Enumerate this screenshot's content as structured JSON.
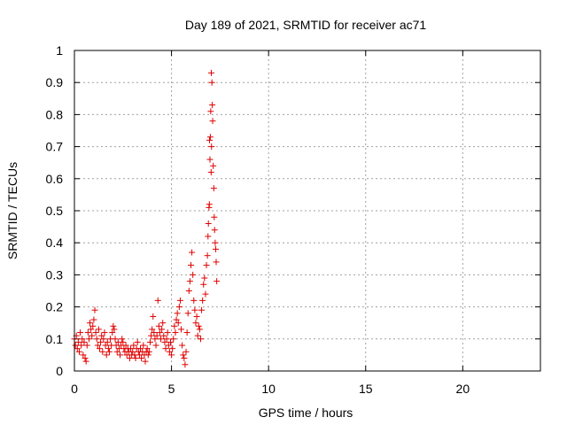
{
  "chart_data": {
    "type": "scatter",
    "title": "Day 189 of 2021, SRMTID for receiver ac71",
    "xlabel": "GPS time / hours",
    "ylabel": "SRMTID / TECUs",
    "xlim": [
      0,
      24
    ],
    "ylim": [
      0,
      1
    ],
    "xticks": [
      0,
      5,
      10,
      15,
      20
    ],
    "xtick_labels": [
      "0",
      "5",
      "10",
      "15",
      "20"
    ],
    "yticks": [
      0,
      0.1,
      0.2,
      0.3,
      0.4,
      0.5,
      0.6,
      0.7,
      0.8,
      0.9,
      1
    ],
    "ytick_labels": [
      "0",
      "0.1",
      "0.2",
      "0.3",
      "0.4",
      "0.5",
      "0.6",
      "0.7",
      "0.8",
      "0.9",
      "1"
    ],
    "grid": true,
    "marker": "+",
    "color": "#e00000",
    "series": [
      {
        "name": "SRMTID",
        "points": [
          [
            0.0,
            0.1
          ],
          [
            0.05,
            0.08
          ],
          [
            0.1,
            0.11
          ],
          [
            0.15,
            0.07
          ],
          [
            0.2,
            0.09
          ],
          [
            0.25,
            0.06
          ],
          [
            0.3,
            0.12
          ],
          [
            0.35,
            0.08
          ],
          [
            0.4,
            0.1
          ],
          [
            0.45,
            0.05
          ],
          [
            0.5,
            0.09
          ],
          [
            0.55,
            0.04
          ],
          [
            0.6,
            0.03
          ],
          [
            0.65,
            0.08
          ],
          [
            0.7,
            0.12
          ],
          [
            0.75,
            0.1
          ],
          [
            0.8,
            0.15
          ],
          [
            0.85,
            0.13
          ],
          [
            0.9,
            0.11
          ],
          [
            0.95,
            0.14
          ],
          [
            1.0,
            0.16
          ],
          [
            1.05,
            0.19
          ],
          [
            1.1,
            0.12
          ],
          [
            1.15,
            0.1
          ],
          [
            1.2,
            0.08
          ],
          [
            1.25,
            0.13
          ],
          [
            1.3,
            0.07
          ],
          [
            1.35,
            0.09
          ],
          [
            1.4,
            0.11
          ],
          [
            1.45,
            0.06
          ],
          [
            1.5,
            0.1
          ],
          [
            1.55,
            0.12
          ],
          [
            1.6,
            0.08
          ],
          [
            1.65,
            0.05
          ],
          [
            1.7,
            0.09
          ],
          [
            1.75,
            0.07
          ],
          [
            1.8,
            0.06
          ],
          [
            1.85,
            0.1
          ],
          [
            1.9,
            0.08
          ],
          [
            1.95,
            0.12
          ],
          [
            2.0,
            0.14
          ],
          [
            2.05,
            0.13
          ],
          [
            2.1,
            0.1
          ],
          [
            2.15,
            0.08
          ],
          [
            2.2,
            0.06
          ],
          [
            2.25,
            0.09
          ],
          [
            2.3,
            0.07
          ],
          [
            2.35,
            0.05
          ],
          [
            2.4,
            0.08
          ],
          [
            2.45,
            0.1
          ],
          [
            2.5,
            0.09
          ],
          [
            2.55,
            0.07
          ],
          [
            2.6,
            0.06
          ],
          [
            2.65,
            0.08
          ],
          [
            2.7,
            0.05
          ],
          [
            2.75,
            0.07
          ],
          [
            2.8,
            0.06
          ],
          [
            2.85,
            0.04
          ],
          [
            2.9,
            0.07
          ],
          [
            2.95,
            0.05
          ],
          [
            3.0,
            0.06
          ],
          [
            3.05,
            0.08
          ],
          [
            3.1,
            0.05
          ],
          [
            3.15,
            0.04
          ],
          [
            3.2,
            0.07
          ],
          [
            3.25,
            0.09
          ],
          [
            3.3,
            0.06
          ],
          [
            3.35,
            0.05
          ],
          [
            3.4,
            0.07
          ],
          [
            3.45,
            0.04
          ],
          [
            3.5,
            0.06
          ],
          [
            3.55,
            0.08
          ],
          [
            3.6,
            0.05
          ],
          [
            3.65,
            0.03
          ],
          [
            3.7,
            0.06
          ],
          [
            3.75,
            0.07
          ],
          [
            3.8,
            0.05
          ],
          [
            3.85,
            0.06
          ],
          [
            3.9,
            0.09
          ],
          [
            3.95,
            0.11
          ],
          [
            4.0,
            0.13
          ],
          [
            4.05,
            0.17
          ],
          [
            4.1,
            0.12
          ],
          [
            4.15,
            0.1
          ],
          [
            4.2,
            0.08
          ],
          [
            4.25,
            0.11
          ],
          [
            4.3,
            0.22
          ],
          [
            4.35,
            0.14
          ],
          [
            4.4,
            0.12
          ],
          [
            4.45,
            0.1
          ],
          [
            4.5,
            0.13
          ],
          [
            4.55,
            0.15
          ],
          [
            4.6,
            0.11
          ],
          [
            4.65,
            0.09
          ],
          [
            4.7,
            0.07
          ],
          [
            4.75,
            0.1
          ],
          [
            4.8,
            0.12
          ],
          [
            4.85,
            0.08
          ],
          [
            4.9,
            0.06
          ],
          [
            4.95,
            0.09
          ],
          [
            5.0,
            0.05
          ],
          [
            5.05,
            0.07
          ],
          [
            5.1,
            0.1
          ],
          [
            5.15,
            0.14
          ],
          [
            5.2,
            0.12
          ],
          [
            5.25,
            0.16
          ],
          [
            5.3,
            0.18
          ],
          [
            5.35,
            0.15
          ],
          [
            5.4,
            0.2
          ],
          [
            5.45,
            0.22
          ],
          [
            5.5,
            0.13
          ],
          [
            5.55,
            0.08
          ],
          [
            5.6,
            0.05
          ],
          [
            5.65,
            0.04
          ],
          [
            5.7,
            0.02
          ],
          [
            5.75,
            0.06
          ],
          [
            5.8,
            0.12
          ],
          [
            5.85,
            0.18
          ],
          [
            5.9,
            0.25
          ],
          [
            5.95,
            0.28
          ],
          [
            6.0,
            0.33
          ],
          [
            6.05,
            0.37
          ],
          [
            6.1,
            0.3
          ],
          [
            6.15,
            0.22
          ],
          [
            6.2,
            0.19
          ],
          [
            6.25,
            0.15
          ],
          [
            6.3,
            0.17
          ],
          [
            6.35,
            0.11
          ],
          [
            6.4,
            0.14
          ],
          [
            6.45,
            0.13
          ],
          [
            6.5,
            0.1
          ],
          [
            6.55,
            0.19
          ],
          [
            6.6,
            0.22
          ],
          [
            6.65,
            0.27
          ],
          [
            6.7,
            0.29
          ],
          [
            6.75,
            0.24
          ],
          [
            6.8,
            0.33
          ],
          [
            6.85,
            0.36
          ],
          [
            6.9,
            0.46
          ],
          [
            6.95,
            0.52
          ],
          [
            7.0,
            0.73
          ],
          [
            7.02,
            0.81
          ],
          [
            7.05,
            0.93
          ],
          [
            7.08,
            0.9
          ],
          [
            7.1,
            0.83
          ],
          [
            7.12,
            0.78
          ],
          [
            7.15,
            0.64
          ],
          [
            7.18,
            0.57
          ],
          [
            7.2,
            0.48
          ],
          [
            7.22,
            0.44
          ],
          [
            7.25,
            0.4
          ],
          [
            7.28,
            0.38
          ],
          [
            7.3,
            0.34
          ],
          [
            7.33,
            0.28
          ],
          [
            6.96,
            0.72
          ],
          [
            6.98,
            0.66
          ],
          [
            7.04,
            0.62
          ],
          [
            6.93,
            0.51
          ],
          [
            7.06,
            0.7
          ],
          [
            6.88,
            0.42
          ]
        ]
      }
    ]
  }
}
